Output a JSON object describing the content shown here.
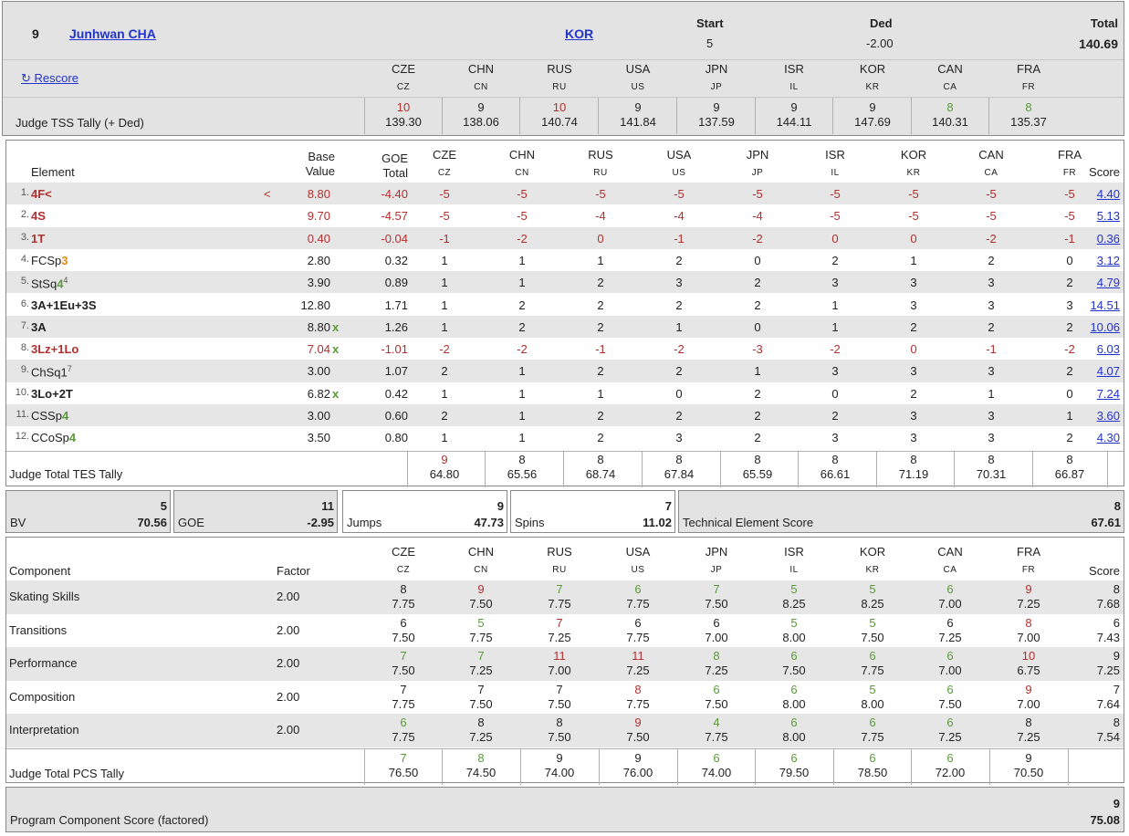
{
  "header": {
    "rank": "9",
    "name": "Junhwan CHA",
    "nation": "KOR",
    "start_label": "Start",
    "start": "5",
    "ded_label": "Ded",
    "ded": "-2.00",
    "total_label": "Total",
    "total": "140.69",
    "rescore": "Rescore",
    "tally_label": "Judge TSS Tally (+ Ded)"
  },
  "judges": [
    {
      "code": "CZE",
      "sub": "CZ"
    },
    {
      "code": "CHN",
      "sub": "CN"
    },
    {
      "code": "RUS",
      "sub": "RU"
    },
    {
      "code": "USA",
      "sub": "US"
    },
    {
      "code": "JPN",
      "sub": "JP"
    },
    {
      "code": "ISR",
      "sub": "IL"
    },
    {
      "code": "KOR",
      "sub": "KR"
    },
    {
      "code": "CAN",
      "sub": "CA"
    },
    {
      "code": "FRA",
      "sub": "FR"
    }
  ],
  "tss": [
    {
      "rank": "10",
      "val": "139.30",
      "c": "red"
    },
    {
      "rank": "9",
      "val": "138.06",
      "c": "blk"
    },
    {
      "rank": "10",
      "val": "140.74",
      "c": "red"
    },
    {
      "rank": "9",
      "val": "141.84",
      "c": "blk"
    },
    {
      "rank": "9",
      "val": "137.59",
      "c": "blk"
    },
    {
      "rank": "9",
      "val": "144.11",
      "c": "blk"
    },
    {
      "rank": "9",
      "val": "147.69",
      "c": "blk"
    },
    {
      "rank": "8",
      "val": "140.31",
      "c": "grn"
    },
    {
      "rank": "8",
      "val": "135.37",
      "c": "grn"
    }
  ],
  "elements_header": {
    "element": "Element",
    "base": "Base",
    "value": "Value",
    "goe": "GOE",
    "goe_total": "Total",
    "score": "Score"
  },
  "elements": [
    {
      "num": "1.",
      "name": "4F<",
      "style": "red",
      "sup": "",
      "flag": "<",
      "bv": "8.80",
      "bvc": "red",
      "x": "",
      "goe": "-4.40",
      "goec": "red",
      "j": [
        "-5",
        "-5",
        "-5",
        "-5",
        "-5",
        "-5",
        "-5",
        "-5",
        "-5"
      ],
      "jc": "red",
      "score": "4.40"
    },
    {
      "num": "2.",
      "name": "4S",
      "style": "red",
      "sup": "",
      "flag": "",
      "bv": "9.70",
      "bvc": "red",
      "x": "",
      "goe": "-4.57",
      "goec": "red",
      "j": [
        "-5",
        "-5",
        "-4",
        "-4",
        "-4",
        "-5",
        "-5",
        "-5",
        "-5"
      ],
      "jc": "red",
      "score": "5.13"
    },
    {
      "num": "3.",
      "name": "1T",
      "style": "red",
      "sup": "",
      "flag": "",
      "bv": "0.40",
      "bvc": "red",
      "x": "",
      "goe": "-0.04",
      "goec": "red",
      "j": [
        "-1",
        "-2",
        "0",
        "-1",
        "-2",
        "0",
        "0",
        "-2",
        "-1"
      ],
      "jc": "red",
      "score": "0.36"
    },
    {
      "num": "4.",
      "name": "FCSp",
      "lvl": "3",
      "lvlc": "orange",
      "style": "norm",
      "sup": "",
      "flag": "",
      "bv": "2.80",
      "bvc": "blk",
      "x": "",
      "goe": "0.32",
      "goec": "blk",
      "j": [
        "1",
        "1",
        "1",
        "2",
        "0",
        "2",
        "1",
        "2",
        "0"
      ],
      "jc": "blk",
      "score": "3.12"
    },
    {
      "num": "5.",
      "name": "StSq",
      "lvl": "4",
      "lvlc": "green",
      "style": "norm",
      "sup": "4",
      "flag": "",
      "bv": "3.90",
      "bvc": "blk",
      "x": "",
      "goe": "0.89",
      "goec": "blk",
      "j": [
        "1",
        "1",
        "2",
        "3",
        "2",
        "3",
        "3",
        "3",
        "2"
      ],
      "jc": "blk",
      "score": "4.79"
    },
    {
      "num": "6.",
      "name": "3A+1Eu+3S",
      "style": "bold",
      "sup": "",
      "flag": "",
      "bv": "12.80",
      "bvc": "blk",
      "x": "",
      "goe": "1.71",
      "goec": "blk",
      "j": [
        "1",
        "2",
        "2",
        "2",
        "2",
        "1",
        "3",
        "3",
        "3"
      ],
      "jc": "blk",
      "score": "14.51"
    },
    {
      "num": "7.",
      "name": "3A",
      "style": "bold",
      "sup": "",
      "flag": "",
      "bv": "8.80",
      "bvc": "blk",
      "x": "x",
      "goe": "1.26",
      "goec": "blk",
      "j": [
        "1",
        "2",
        "2",
        "1",
        "0",
        "1",
        "2",
        "2",
        "2"
      ],
      "jc": "blk",
      "score": "10.06"
    },
    {
      "num": "8.",
      "name": "3Lz+1Lo",
      "style": "red",
      "sup": "",
      "flag": "",
      "bv": "7.04",
      "bvc": "red",
      "x": "x",
      "goe": "-1.01",
      "goec": "red",
      "j": [
        "-2",
        "-2",
        "-1",
        "-2",
        "-3",
        "-2",
        "0",
        "-1",
        "-2"
      ],
      "jc": "red",
      "score": "6.03"
    },
    {
      "num": "9.",
      "name": "ChSq1",
      "style": "norm",
      "sup": "7",
      "flag": "",
      "bv": "3.00",
      "bvc": "blk",
      "x": "",
      "goe": "1.07",
      "goec": "blk",
      "j": [
        "2",
        "1",
        "2",
        "2",
        "1",
        "3",
        "3",
        "3",
        "2"
      ],
      "jc": "blk",
      "score": "4.07"
    },
    {
      "num": "10.",
      "name": "3Lo+2T",
      "style": "bold",
      "sup": "",
      "flag": "",
      "bv": "6.82",
      "bvc": "blk",
      "x": "x",
      "goe": "0.42",
      "goec": "blk",
      "j": [
        "1",
        "1",
        "1",
        "0",
        "2",
        "0",
        "2",
        "1",
        "0"
      ],
      "jc": "blk",
      "score": "7.24"
    },
    {
      "num": "11.",
      "name": "CSSp",
      "lvl": "4",
      "lvlc": "green",
      "style": "norm",
      "sup": "",
      "flag": "",
      "bv": "3.00",
      "bvc": "blk",
      "x": "",
      "goe": "0.60",
      "goec": "blk",
      "j": [
        "2",
        "1",
        "2",
        "2",
        "2",
        "2",
        "3",
        "3",
        "1"
      ],
      "jc": "blk",
      "score": "3.60"
    },
    {
      "num": "12.",
      "name": "CCoSp",
      "lvl": "4",
      "lvlc": "green",
      "style": "norm",
      "sup": "",
      "flag": "",
      "bv": "3.50",
      "bvc": "blk",
      "x": "",
      "goe": "0.80",
      "goec": "blk",
      "j": [
        "1",
        "1",
        "2",
        "3",
        "2",
        "3",
        "3",
        "3",
        "2"
      ],
      "jc": "blk",
      "score": "4.30"
    }
  ],
  "tes_tally": {
    "label": "Judge Total TES Tally",
    "items": [
      {
        "rank": "9",
        "val": "64.80",
        "c": "red"
      },
      {
        "rank": "8",
        "val": "65.56",
        "c": "blk"
      },
      {
        "rank": "8",
        "val": "68.74",
        "c": "blk"
      },
      {
        "rank": "8",
        "val": "67.84",
        "c": "blk"
      },
      {
        "rank": "8",
        "val": "65.59",
        "c": "blk"
      },
      {
        "rank": "8",
        "val": "66.61",
        "c": "blk"
      },
      {
        "rank": "8",
        "val": "71.19",
        "c": "blk"
      },
      {
        "rank": "8",
        "val": "70.31",
        "c": "blk"
      },
      {
        "rank": "8",
        "val": "66.87",
        "c": "blk"
      }
    ]
  },
  "summary": {
    "bv": {
      "label": "BV",
      "rank": "5",
      "val": "70.56"
    },
    "goe": {
      "label": "GOE",
      "rank": "11",
      "val": "-2.95"
    },
    "jumps": {
      "label": "Jumps",
      "rank": "9",
      "val": "47.73"
    },
    "spins": {
      "label": "Spins",
      "rank": "7",
      "val": "11.02"
    },
    "tes": {
      "label": "Technical Element Score",
      "rank": "8",
      "val": "67.61"
    }
  },
  "components_header": {
    "component": "Component",
    "factor": "Factor",
    "score": "Score"
  },
  "components": [
    {
      "name": "Skating Skills",
      "factor": "2.00",
      "j": [
        {
          "r": "8",
          "v": "7.75",
          "c": "blk"
        },
        {
          "r": "9",
          "v": "7.50",
          "c": "red"
        },
        {
          "r": "7",
          "v": "7.75",
          "c": "grn"
        },
        {
          "r": "6",
          "v": "7.75",
          "c": "grn"
        },
        {
          "r": "7",
          "v": "7.50",
          "c": "grn"
        },
        {
          "r": "5",
          "v": "8.25",
          "c": "grn"
        },
        {
          "r": "5",
          "v": "8.25",
          "c": "grn"
        },
        {
          "r": "6",
          "v": "7.00",
          "c": "grn"
        },
        {
          "r": "9",
          "v": "7.25",
          "c": "red"
        }
      ],
      "rank": "8",
      "score": "7.68"
    },
    {
      "name": "Transitions",
      "factor": "2.00",
      "j": [
        {
          "r": "6",
          "v": "7.50",
          "c": "blk"
        },
        {
          "r": "5",
          "v": "7.75",
          "c": "grn"
        },
        {
          "r": "7",
          "v": "7.25",
          "c": "red"
        },
        {
          "r": "6",
          "v": "7.75",
          "c": "blk"
        },
        {
          "r": "6",
          "v": "7.00",
          "c": "blk"
        },
        {
          "r": "5",
          "v": "8.00",
          "c": "grn"
        },
        {
          "r": "5",
          "v": "7.50",
          "c": "grn"
        },
        {
          "r": "6",
          "v": "7.25",
          "c": "blk"
        },
        {
          "r": "8",
          "v": "7.00",
          "c": "red"
        }
      ],
      "rank": "6",
      "score": "7.43"
    },
    {
      "name": "Performance",
      "factor": "2.00",
      "j": [
        {
          "r": "7",
          "v": "7.50",
          "c": "grn"
        },
        {
          "r": "7",
          "v": "7.25",
          "c": "grn"
        },
        {
          "r": "11",
          "v": "7.00",
          "c": "red"
        },
        {
          "r": "11",
          "v": "7.25",
          "c": "red"
        },
        {
          "r": "8",
          "v": "7.25",
          "c": "grn"
        },
        {
          "r": "6",
          "v": "7.50",
          "c": "grn"
        },
        {
          "r": "6",
          "v": "7.75",
          "c": "grn"
        },
        {
          "r": "6",
          "v": "7.00",
          "c": "grn"
        },
        {
          "r": "10",
          "v": "6.75",
          "c": "red"
        }
      ],
      "rank": "9",
      "score": "7.25"
    },
    {
      "name": "Composition",
      "factor": "2.00",
      "j": [
        {
          "r": "7",
          "v": "7.75",
          "c": "blk"
        },
        {
          "r": "7",
          "v": "7.50",
          "c": "blk"
        },
        {
          "r": "7",
          "v": "7.50",
          "c": "blk"
        },
        {
          "r": "8",
          "v": "7.75",
          "c": "red"
        },
        {
          "r": "6",
          "v": "7.50",
          "c": "grn"
        },
        {
          "r": "6",
          "v": "8.00",
          "c": "grn"
        },
        {
          "r": "5",
          "v": "8.00",
          "c": "grn"
        },
        {
          "r": "6",
          "v": "7.50",
          "c": "grn"
        },
        {
          "r": "9",
          "v": "7.00",
          "c": "red"
        }
      ],
      "rank": "7",
      "score": "7.64"
    },
    {
      "name": "Interpretation",
      "factor": "2.00",
      "j": [
        {
          "r": "6",
          "v": "7.75",
          "c": "grn"
        },
        {
          "r": "8",
          "v": "7.25",
          "c": "blk"
        },
        {
          "r": "8",
          "v": "7.50",
          "c": "blk"
        },
        {
          "r": "9",
          "v": "7.50",
          "c": "red"
        },
        {
          "r": "4",
          "v": "7.75",
          "c": "grn"
        },
        {
          "r": "6",
          "v": "8.00",
          "c": "grn"
        },
        {
          "r": "6",
          "v": "7.75",
          "c": "grn"
        },
        {
          "r": "6",
          "v": "7.25",
          "c": "grn"
        },
        {
          "r": "8",
          "v": "7.25",
          "c": "blk"
        }
      ],
      "rank": "8",
      "score": "7.54"
    }
  ],
  "pcs_tally": {
    "label": "Judge Total PCS Tally",
    "items": [
      {
        "rank": "7",
        "val": "76.50",
        "c": "grn"
      },
      {
        "rank": "8",
        "val": "74.50",
        "c": "grn"
      },
      {
        "rank": "9",
        "val": "74.00",
        "c": "blk"
      },
      {
        "rank": "9",
        "val": "76.00",
        "c": "blk"
      },
      {
        "rank": "6",
        "val": "74.00",
        "c": "grn"
      },
      {
        "rank": "6",
        "val": "79.50",
        "c": "grn"
      },
      {
        "rank": "6",
        "val": "78.50",
        "c": "grn"
      },
      {
        "rank": "6",
        "val": "72.00",
        "c": "grn"
      },
      {
        "rank": "9",
        "val": "70.50",
        "c": "blk"
      }
    ]
  },
  "pcs": {
    "label": "Program Component Score (factored)",
    "rank": "9",
    "val": "75.08"
  },
  "colors": {
    "red": "#b03030",
    "green": "#5a9a3a",
    "orange": "#e08a1e",
    "link": "#2233cc"
  }
}
